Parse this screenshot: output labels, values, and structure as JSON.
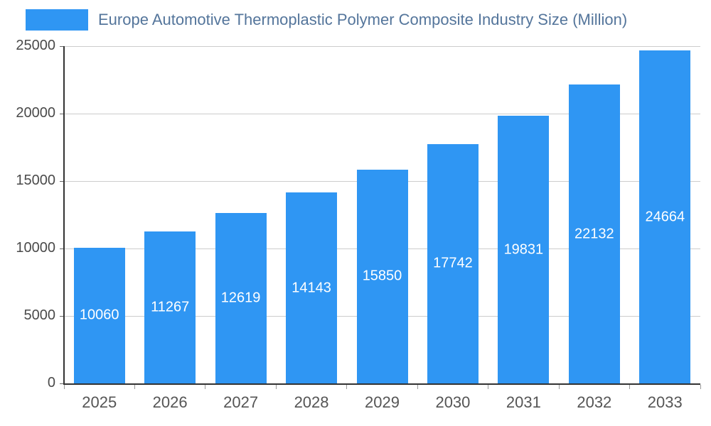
{
  "legend": {
    "label": "Europe Automotive Thermoplastic Polymer Composite Industry Size (Million)",
    "swatch_color": "#2F96F3",
    "text_color": "#54759B"
  },
  "chart_data": {
    "type": "bar",
    "title": "Europe Automotive Thermoplastic Polymer Composite Industry Size (Million)",
    "categories": [
      "2025",
      "2026",
      "2027",
      "2028",
      "2029",
      "2030",
      "2031",
      "2032",
      "2033"
    ],
    "values": [
      10060,
      11267,
      12619,
      14143,
      15850,
      17742,
      19831,
      22132,
      24664
    ],
    "value_labels": [
      "10060",
      "11267",
      "12619",
      "14143",
      "15850",
      "17742",
      "19831",
      "22132",
      "24664"
    ],
    "xlabel": "",
    "ylabel": "",
    "ylim": [
      0,
      25000
    ],
    "yticks": [
      0,
      5000,
      10000,
      15000,
      20000,
      25000
    ],
    "bar_color": "#2F96F3",
    "value_label_color": "#FFFFFF",
    "axis_label_color": "#4A4A4A",
    "grid": "horizontal",
    "legend_position": "top-left",
    "background": "#FFFFFF"
  }
}
